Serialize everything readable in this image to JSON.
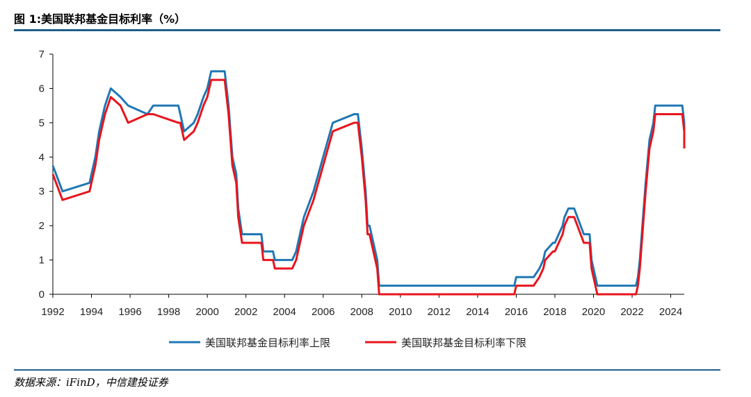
{
  "header": {
    "title": "图 1:美国联邦基金目标利率（%）"
  },
  "footer": {
    "source": "数据来源：iFinD，中信建投证券"
  },
  "colors": {
    "upper": "#1f77b4",
    "lower": "#e8141c",
    "axis": "#000000",
    "rule": "#1f5f8b"
  },
  "chart_data": {
    "type": "line",
    "title": "图 1:美国联邦基金目标利率（%）",
    "xlabel": "",
    "ylabel": "",
    "xlim": [
      1992,
      2024.7
    ],
    "ylim": [
      0,
      7
    ],
    "yticks": [
      0,
      1,
      2,
      3,
      4,
      5,
      6,
      7
    ],
    "xticks": [
      1992,
      1994,
      1996,
      1998,
      2000,
      2002,
      2004,
      2006,
      2008,
      2010,
      2012,
      2014,
      2016,
      2018,
      2020,
      2022,
      2024
    ],
    "grid": false,
    "legend_position": "bottom-center",
    "series": [
      {
        "name": "美国联邦基金目标利率上限",
        "x": [
          1992,
          1992.5,
          1993.9,
          1994.0,
          1994.2,
          1994.4,
          1994.7,
          1995.0,
          1995.5,
          1995.9,
          1996.9,
          1997.2,
          1998.5,
          1998.6,
          1998.8,
          1999.3,
          1999.5,
          1999.8,
          2000.0,
          2000.2,
          2000.4,
          2000.9,
          2001.1,
          2001.3,
          2001.5,
          2001.6,
          2001.8,
          2002.0,
          2002.8,
          2002.9,
          2003.4,
          2003.5,
          2004.4,
          2004.6,
          2004.8,
          2005.0,
          2005.5,
          2006.0,
          2006.5,
          2007.6,
          2007.8,
          2007.9,
          2008.0,
          2008.2,
          2008.3,
          2008.4,
          2008.8,
          2008.9,
          2009.0,
          2015.9,
          2016.0,
          2016.9,
          2017.2,
          2017.4,
          2017.5,
          2017.9,
          2018.0,
          2018.2,
          2018.4,
          2018.5,
          2018.7,
          2018.9,
          2019.0,
          2019.5,
          2019.6,
          2019.8,
          2019.9,
          2020.2,
          2020.25,
          2022.2,
          2022.3,
          2022.4,
          2022.5,
          2022.7,
          2022.9,
          2023.1,
          2023.2,
          2023.5,
          2024.6,
          2024.7,
          2024.9
        ],
        "values": [
          3.75,
          3.0,
          3.25,
          3.5,
          4.0,
          4.75,
          5.5,
          6.0,
          5.75,
          5.5,
          5.25,
          5.5,
          5.5,
          5.25,
          4.75,
          5.0,
          5.25,
          5.75,
          6.0,
          6.5,
          6.5,
          6.5,
          5.5,
          4.0,
          3.5,
          2.5,
          1.75,
          1.75,
          1.75,
          1.25,
          1.25,
          1.0,
          1.0,
          1.25,
          1.75,
          2.25,
          3.0,
          4.0,
          5.0,
          5.25,
          5.25,
          4.75,
          4.25,
          3.0,
          2.0,
          2.0,
          1.0,
          0.25,
          0.25,
          0.25,
          0.5,
          0.5,
          0.75,
          1.0,
          1.25,
          1.5,
          1.5,
          1.75,
          2.0,
          2.25,
          2.5,
          2.5,
          2.5,
          1.75,
          1.75,
          1.75,
          1.0,
          0.25,
          0.25,
          0.25,
          0.5,
          1.0,
          1.75,
          3.25,
          4.5,
          5.0,
          5.5,
          5.5,
          5.5,
          5.0,
          4.75
        ]
      },
      {
        "name": "美国联邦基金目标利率下限",
        "x": [
          1992,
          1992.5,
          1993.9,
          1994.0,
          1994.2,
          1994.4,
          1994.7,
          1995.0,
          1995.5,
          1995.9,
          1996.9,
          1997.2,
          1998.5,
          1998.6,
          1998.8,
          1999.3,
          1999.5,
          1999.8,
          2000.0,
          2000.2,
          2000.4,
          2000.9,
          2001.1,
          2001.3,
          2001.5,
          2001.6,
          2001.8,
          2002.0,
          2002.8,
          2002.9,
          2003.4,
          2003.5,
          2004.4,
          2004.6,
          2004.8,
          2005.0,
          2005.5,
          2006.0,
          2006.5,
          2007.6,
          2007.8,
          2007.9,
          2008.0,
          2008.2,
          2008.3,
          2008.4,
          2008.8,
          2008.9,
          2009.0,
          2015.9,
          2016.0,
          2016.9,
          2017.2,
          2017.4,
          2017.5,
          2017.9,
          2018.0,
          2018.2,
          2018.4,
          2018.5,
          2018.7,
          2018.9,
          2019.0,
          2019.5,
          2019.6,
          2019.8,
          2019.9,
          2020.2,
          2020.25,
          2022.2,
          2022.3,
          2022.4,
          2022.5,
          2022.7,
          2022.9,
          2023.1,
          2023.2,
          2023.5,
          2024.6,
          2024.7,
          2024.9
        ],
        "values": [
          3.5,
          2.75,
          3.0,
          3.25,
          3.75,
          4.5,
          5.25,
          5.75,
          5.5,
          5.0,
          5.25,
          5.25,
          5.0,
          5.0,
          4.5,
          4.75,
          5.0,
          5.5,
          5.75,
          6.25,
          6.25,
          6.25,
          5.25,
          3.75,
          3.25,
          2.25,
          1.5,
          1.5,
          1.5,
          1.0,
          1.0,
          0.75,
          0.75,
          1.0,
          1.5,
          2.0,
          2.75,
          3.75,
          4.75,
          5.0,
          5.0,
          4.5,
          4.0,
          2.75,
          1.75,
          1.75,
          0.75,
          0.0,
          0.0,
          0.0,
          0.25,
          0.25,
          0.5,
          0.75,
          1.0,
          1.25,
          1.25,
          1.5,
          1.75,
          2.0,
          2.25,
          2.25,
          2.25,
          1.5,
          1.5,
          1.5,
          0.75,
          0.0,
          0.0,
          0.0,
          0.25,
          0.75,
          1.5,
          3.0,
          4.25,
          4.75,
          5.25,
          5.25,
          5.25,
          4.75,
          4.25
        ]
      }
    ]
  }
}
